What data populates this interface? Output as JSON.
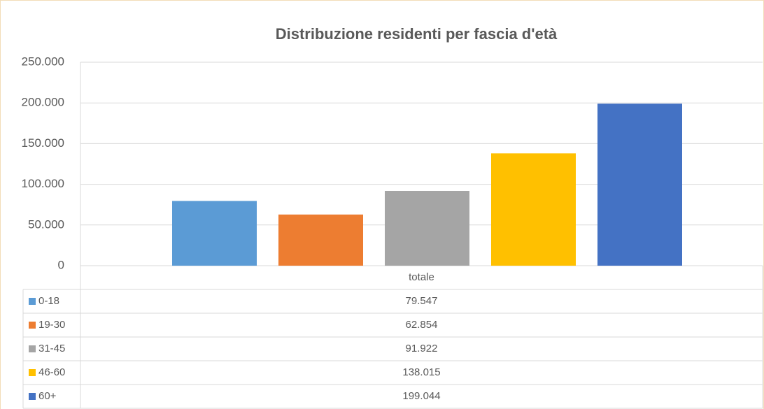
{
  "chart_data": {
    "type": "bar",
    "title": "Distribuzione residenti per fascia d'età",
    "categories": [
      "totale"
    ],
    "series": [
      {
        "name": "0-18",
        "color": "#5b9bd5",
        "values": [
          79547
        ],
        "value_labels": [
          "79.547"
        ]
      },
      {
        "name": "19-30",
        "color": "#ed7d31",
        "values": [
          62854
        ],
        "value_labels": [
          "62.854"
        ]
      },
      {
        "name": "31-45",
        "color": "#a5a5a5",
        "values": [
          91922
        ],
        "value_labels": [
          "91.922"
        ]
      },
      {
        "name": "46-60",
        "color": "#ffc000",
        "values": [
          138015
        ],
        "value_labels": [
          "138.015"
        ]
      },
      {
        "name": "60+",
        "color": "#4472c4",
        "values": [
          199044
        ],
        "value_labels": [
          "199.044"
        ]
      }
    ],
    "ylim": [
      0,
      250000
    ],
    "yticks": [
      0,
      {
        "value": 50000,
        "label": "50.000"
      },
      {
        "value": 100000,
        "label": "100.000"
      },
      {
        "value": 150000,
        "label": "150.000"
      },
      {
        "value": 200000,
        "label": "200.000"
      },
      {
        "value": 250000,
        "label": "250.000"
      }
    ],
    "grid": true,
    "legend": "table"
  }
}
